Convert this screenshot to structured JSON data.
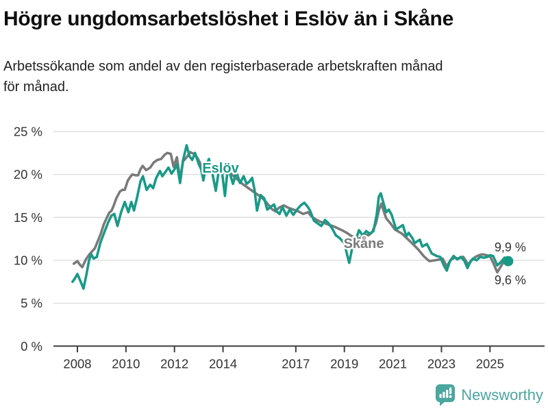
{
  "header": {
    "title": "Högre ungdomsarbetslöshet i Eslöv än i Skåne",
    "subtitle_line1": "Arbetssökande som andel av den registerbaserade arbetskraften månad",
    "subtitle_line2": "för månad."
  },
  "branding": {
    "logo_text": "Newsworthy",
    "logo_color": "#4ba69f"
  },
  "chart_data": {
    "type": "line",
    "title": "Högre ungdomsarbetslöshet i Eslöv än i Skåne",
    "xlabel": "",
    "ylabel": "",
    "x_unit": "year (decimal, monthly data)",
    "y_unit": "percent",
    "ylim": [
      0,
      25
    ],
    "xlim": [
      2007.7,
      2026.2
    ],
    "grid": "horizontal",
    "legend_position": "labels-on-lines",
    "colors": {
      "eslov": "#189a87",
      "skane": "#7a7a7a",
      "grid": "#dbdbdb",
      "axis": "#3f3f3f",
      "tick_text": "#333333"
    },
    "y_ticks": [
      {
        "label": "0 %",
        "value": 0
      },
      {
        "label": "5 %",
        "value": 5
      },
      {
        "label": "10 %",
        "value": 10
      },
      {
        "label": "15 %",
        "value": 15
      },
      {
        "label": "20 %",
        "value": 20
      },
      {
        "label": "25 %",
        "value": 25
      }
    ],
    "x_ticks": [
      {
        "label": "2008",
        "year": 2008
      },
      {
        "label": "2010",
        "year": 2010
      },
      {
        "label": "2012",
        "year": 2012
      },
      {
        "label": "2014",
        "year": 2014
      },
      {
        "label": "2017",
        "year": 2017
      },
      {
        "label": "2019",
        "year": 2019
      },
      {
        "label": "2021",
        "year": 2021
      },
      {
        "label": "2023",
        "year": 2023
      },
      {
        "label": "2025",
        "year": 2025
      }
    ],
    "series": [
      {
        "name": "Skåne",
        "color": "#7a7a7a",
        "label_at": {
          "year": 2019.8,
          "pct": 11.9
        },
        "end_label": "9,6 %",
        "end_value": 9.6,
        "points": [
          [
            2007.85,
            9.6
          ],
          [
            2008.0,
            9.9
          ],
          [
            2008.1,
            9.5
          ],
          [
            2008.2,
            9.2
          ],
          [
            2008.35,
            10.1
          ],
          [
            2008.5,
            10.7
          ],
          [
            2008.72,
            11.4
          ],
          [
            2008.95,
            13.0
          ],
          [
            2009.09,
            14.2
          ],
          [
            2009.3,
            15.5
          ],
          [
            2009.41,
            15.8
          ],
          [
            2009.5,
            16.4
          ],
          [
            2009.6,
            17.2
          ],
          [
            2009.75,
            18.0
          ],
          [
            2009.85,
            18.2
          ],
          [
            2009.95,
            18.2
          ],
          [
            2010.08,
            19.3
          ],
          [
            2010.2,
            19.8
          ],
          [
            2010.27,
            20.0
          ],
          [
            2010.4,
            19.9
          ],
          [
            2010.5,
            19.9
          ],
          [
            2010.6,
            20.6
          ],
          [
            2010.69,
            21.0
          ],
          [
            2010.83,
            20.5
          ],
          [
            2011.0,
            20.8
          ],
          [
            2011.15,
            21.4
          ],
          [
            2011.3,
            21.7
          ],
          [
            2011.45,
            21.8
          ],
          [
            2011.6,
            22.3
          ],
          [
            2011.7,
            22.5
          ],
          [
            2011.85,
            22.4
          ],
          [
            2011.96,
            20.9
          ],
          [
            2012.1,
            22.0
          ],
          [
            2012.23,
            19.4
          ],
          [
            2012.35,
            21.5
          ],
          [
            2012.5,
            22.0
          ],
          [
            2012.65,
            22.6
          ],
          [
            2012.8,
            22.4
          ],
          [
            2012.95,
            21.9
          ],
          [
            2013.1,
            21.1
          ],
          [
            2013.19,
            20.9
          ],
          [
            2013.35,
            20.7
          ],
          [
            2013.5,
            20.5
          ],
          [
            2013.7,
            20.6
          ],
          [
            2013.9,
            20.4
          ],
          [
            2014.05,
            20.2
          ],
          [
            2014.2,
            20.5
          ],
          [
            2014.4,
            19.9
          ],
          [
            2014.6,
            19.4
          ],
          [
            2014.8,
            18.9
          ],
          [
            2015.0,
            18.5
          ],
          [
            2015.2,
            18.1
          ],
          [
            2015.4,
            17.7
          ],
          [
            2015.6,
            17.3
          ],
          [
            2015.8,
            16.7
          ],
          [
            2016.0,
            16.0
          ],
          [
            2016.15,
            15.7
          ],
          [
            2016.3,
            16.1
          ],
          [
            2016.5,
            16.4
          ],
          [
            2016.7,
            16.1
          ],
          [
            2016.9,
            15.9
          ],
          [
            2017.1,
            15.7
          ],
          [
            2017.3,
            15.4
          ],
          [
            2017.5,
            15.6
          ],
          [
            2017.65,
            15.1
          ],
          [
            2017.8,
            14.8
          ],
          [
            2018.0,
            14.5
          ],
          [
            2018.3,
            14.2
          ],
          [
            2018.6,
            13.9
          ],
          [
            2018.9,
            13.5
          ],
          [
            2019.1,
            13.2
          ],
          [
            2019.25,
            12.9
          ],
          [
            2019.45,
            12.6
          ],
          [
            2019.6,
            12.5
          ],
          [
            2019.75,
            12.8
          ],
          [
            2019.9,
            13.0
          ],
          [
            2020.0,
            12.9
          ],
          [
            2020.15,
            13.3
          ],
          [
            2020.3,
            14.3
          ],
          [
            2020.42,
            15.8
          ],
          [
            2020.52,
            16.6
          ],
          [
            2020.6,
            15.9
          ],
          [
            2020.72,
            14.9
          ],
          [
            2020.9,
            14.3
          ],
          [
            2021.08,
            13.6
          ],
          [
            2021.37,
            13.1
          ],
          [
            2021.6,
            12.5
          ],
          [
            2021.75,
            12.1
          ],
          [
            2022.03,
            11.3
          ],
          [
            2022.3,
            10.4
          ],
          [
            2022.5,
            9.9
          ],
          [
            2022.73,
            10.0
          ],
          [
            2022.95,
            10.1
          ],
          [
            2023.05,
            10.2
          ],
          [
            2023.22,
            9.3
          ],
          [
            2023.4,
            10.1
          ],
          [
            2023.55,
            10.3
          ],
          [
            2023.7,
            10.2
          ],
          [
            2023.9,
            10.4
          ],
          [
            2024.1,
            9.5
          ],
          [
            2024.25,
            10.0
          ],
          [
            2024.4,
            10.4
          ],
          [
            2024.55,
            10.6
          ],
          [
            2024.7,
            10.7
          ],
          [
            2024.85,
            10.6
          ],
          [
            2025.0,
            10.5
          ],
          [
            2025.15,
            9.6
          ],
          [
            2025.3,
            8.6
          ],
          [
            2025.45,
            9.3
          ],
          [
            2025.6,
            10.0
          ],
          [
            2025.75,
            9.6
          ]
        ]
      },
      {
        "name": "Eslöv",
        "color": "#189a87",
        "label_at": {
          "year": 2013.9,
          "pct": 20.7
        },
        "end_label": "9,9 %",
        "end_value": 9.9,
        "end_dot": true,
        "points": [
          [
            2007.8,
            7.5
          ],
          [
            2007.9,
            7.9
          ],
          [
            2008.0,
            8.4
          ],
          [
            2008.12,
            7.6
          ],
          [
            2008.25,
            6.7
          ],
          [
            2008.37,
            8.3
          ],
          [
            2008.48,
            10.0
          ],
          [
            2008.57,
            10.7
          ],
          [
            2008.67,
            10.2
          ],
          [
            2008.8,
            10.4
          ],
          [
            2008.95,
            12.1
          ],
          [
            2009.1,
            13.2
          ],
          [
            2009.25,
            14.3
          ],
          [
            2009.4,
            15.2
          ],
          [
            2009.52,
            15.4
          ],
          [
            2009.65,
            14.0
          ],
          [
            2009.8,
            15.6
          ],
          [
            2009.95,
            16.8
          ],
          [
            2010.1,
            15.6
          ],
          [
            2010.22,
            16.8
          ],
          [
            2010.33,
            15.8
          ],
          [
            2010.45,
            17.2
          ],
          [
            2010.6,
            19.2
          ],
          [
            2010.7,
            19.8
          ],
          [
            2010.85,
            18.2
          ],
          [
            2011.0,
            18.8
          ],
          [
            2011.12,
            18.4
          ],
          [
            2011.25,
            19.6
          ],
          [
            2011.4,
            20.4
          ],
          [
            2011.5,
            19.8
          ],
          [
            2011.63,
            20.3
          ],
          [
            2011.75,
            20.8
          ],
          [
            2011.88,
            20.1
          ],
          [
            2012.0,
            20.6
          ],
          [
            2012.1,
            21.2
          ],
          [
            2012.23,
            19.0
          ],
          [
            2012.35,
            21.6
          ],
          [
            2012.5,
            23.4
          ],
          [
            2012.62,
            22.1
          ],
          [
            2012.73,
            21.7
          ],
          [
            2012.85,
            22.5
          ],
          [
            2013.0,
            21.2
          ],
          [
            2013.1,
            20.6
          ],
          [
            2013.19,
            19.3
          ],
          [
            2013.3,
            21.0
          ],
          [
            2013.42,
            21.8
          ],
          [
            2013.55,
            20.3
          ],
          [
            2013.7,
            18.1
          ],
          [
            2013.85,
            20.9
          ],
          [
            2013.95,
            20.5
          ],
          [
            2014.08,
            17.5
          ],
          [
            2014.2,
            20.9
          ],
          [
            2014.41,
            18.9
          ],
          [
            2014.55,
            20.3
          ],
          [
            2014.7,
            19.0
          ],
          [
            2014.85,
            19.8
          ],
          [
            2014.97,
            18.9
          ],
          [
            2015.1,
            19.2
          ],
          [
            2015.2,
            19.6
          ],
          [
            2015.3,
            18.2
          ],
          [
            2015.4,
            15.8
          ],
          [
            2015.55,
            17.6
          ],
          [
            2015.7,
            17.2
          ],
          [
            2015.82,
            15.9
          ],
          [
            2015.95,
            16.2
          ],
          [
            2016.1,
            16.5
          ],
          [
            2016.2,
            15.7
          ],
          [
            2016.33,
            15.4
          ],
          [
            2016.45,
            16.2
          ],
          [
            2016.61,
            15.2
          ],
          [
            2016.75,
            15.9
          ],
          [
            2016.9,
            15.3
          ],
          [
            2017.05,
            15.9
          ],
          [
            2017.2,
            16.4
          ],
          [
            2017.35,
            16.7
          ],
          [
            2017.5,
            16.2
          ],
          [
            2017.6,
            15.7
          ],
          [
            2017.75,
            14.6
          ],
          [
            2017.9,
            14.3
          ],
          [
            2018.05,
            14.0
          ],
          [
            2018.2,
            14.7
          ],
          [
            2018.35,
            14.3
          ],
          [
            2018.5,
            13.7
          ],
          [
            2018.65,
            12.9
          ],
          [
            2018.8,
            12.6
          ],
          [
            2019.0,
            12.0
          ],
          [
            2019.1,
            10.8
          ],
          [
            2019.2,
            9.7
          ],
          [
            2019.35,
            11.8
          ],
          [
            2019.5,
            12.6
          ],
          [
            2019.6,
            13.5
          ],
          [
            2019.75,
            12.9
          ],
          [
            2019.9,
            13.4
          ],
          [
            2020.05,
            13.1
          ],
          [
            2020.2,
            13.4
          ],
          [
            2020.33,
            15.3
          ],
          [
            2020.42,
            17.4
          ],
          [
            2020.5,
            17.8
          ],
          [
            2020.62,
            16.6
          ],
          [
            2020.72,
            15.6
          ],
          [
            2020.83,
            15.9
          ],
          [
            2020.95,
            15.3
          ],
          [
            2021.13,
            13.6
          ],
          [
            2021.3,
            13.9
          ],
          [
            2021.41,
            14.1
          ],
          [
            2021.55,
            12.8
          ],
          [
            2021.65,
            13.2
          ],
          [
            2021.8,
            12.6
          ],
          [
            2021.9,
            12.0
          ],
          [
            2022.0,
            12.2
          ],
          [
            2022.11,
            12.4
          ],
          [
            2022.21,
            11.6
          ],
          [
            2022.4,
            11.9
          ],
          [
            2022.6,
            10.8
          ],
          [
            2022.8,
            10.5
          ],
          [
            2022.95,
            10.4
          ],
          [
            2023.1,
            9.4
          ],
          [
            2023.22,
            8.8
          ],
          [
            2023.35,
            9.9
          ],
          [
            2023.5,
            10.5
          ],
          [
            2023.65,
            10.1
          ],
          [
            2023.8,
            10.4
          ],
          [
            2023.95,
            9.9
          ],
          [
            2024.07,
            9.1
          ],
          [
            2024.2,
            9.9
          ],
          [
            2024.3,
            10.2
          ],
          [
            2024.45,
            10.0
          ],
          [
            2024.6,
            10.4
          ],
          [
            2024.75,
            10.3
          ],
          [
            2024.9,
            10.4
          ],
          [
            2025.0,
            10.6
          ],
          [
            2025.13,
            10.5
          ],
          [
            2025.3,
            9.4
          ],
          [
            2025.45,
            9.8
          ],
          [
            2025.6,
            10.3
          ],
          [
            2025.75,
            9.9
          ]
        ]
      }
    ]
  }
}
